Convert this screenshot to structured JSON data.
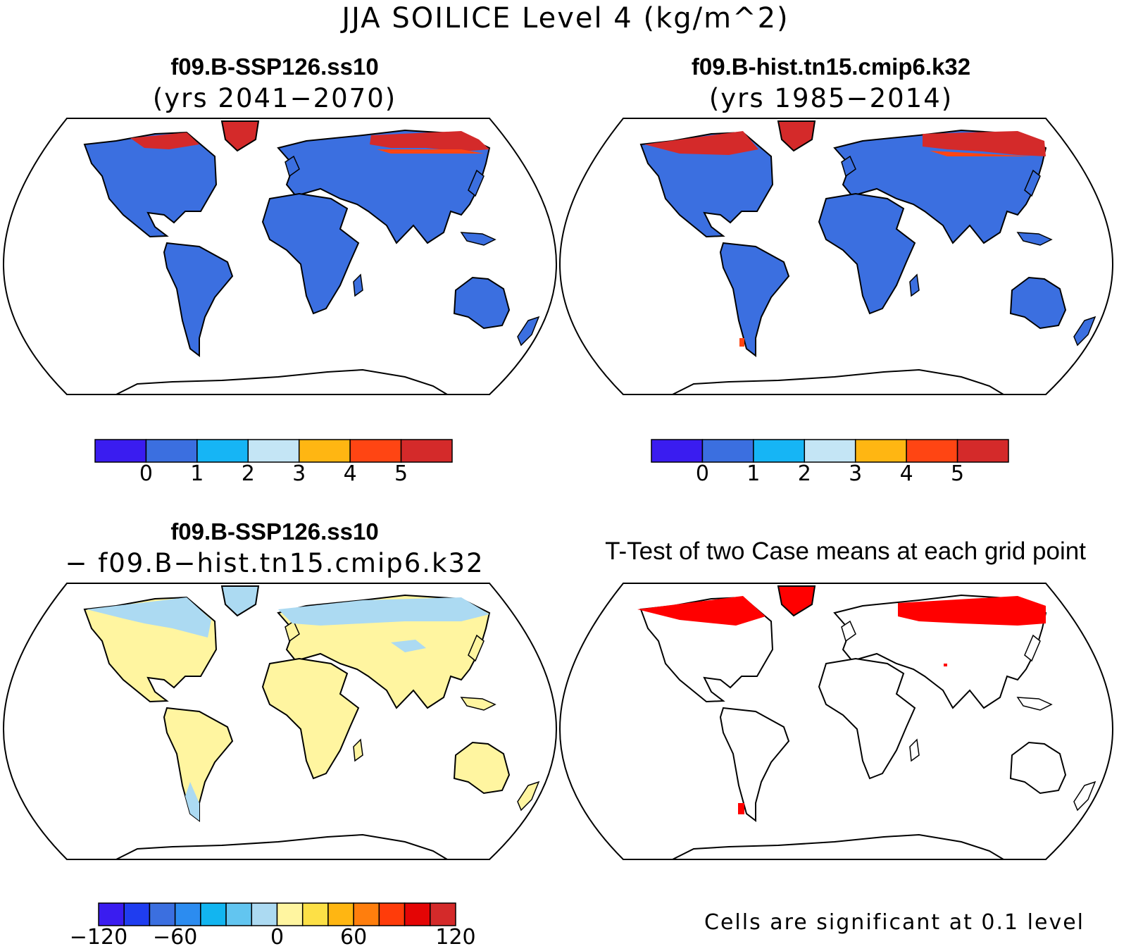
{
  "title": "JJA SOILICE Level 4 (kg/m^2)",
  "panels": {
    "top_left": {
      "title": "f09.B-SSP126.ss10",
      "subtitle": "(yrs 2041−2070)"
    },
    "top_right": {
      "title": "f09.B-hist.tn15.cmip6.k32",
      "subtitle": "(yrs 1985−2014)"
    },
    "bottom_left": {
      "title": "f09.B-SSP126.ss10",
      "subtitle": "− f09.B−hist.tn15.cmip6.k32"
    },
    "bottom_right": {
      "title": "T-Test of two Case means at each grid point",
      "note": "Cells are significant at 0.1 level"
    }
  },
  "colors": {
    "land_blue": "#3b6fe0",
    "arctic_red": "#d42a2a",
    "arctic_orange": "#ff4513",
    "light_blue_diff": "#acdaf2",
    "yellow_diff": "#fff5a0",
    "ttest_red": "#ff0000"
  },
  "chart_data": [
    {
      "type": "heatmap",
      "panel": "top_left",
      "colorbar": {
        "colors": [
          "#3a1cf0",
          "#3b6fe0",
          "#16b5f5",
          "#c4e5f5",
          "#ffb612",
          "#ff4513",
          "#d42a2a"
        ],
        "tick_labels": [
          "0",
          "1",
          "2",
          "3",
          "4",
          "5"
        ]
      }
    },
    {
      "type": "heatmap",
      "panel": "top_right",
      "colorbar": {
        "colors": [
          "#3a1cf0",
          "#3b6fe0",
          "#16b5f5",
          "#c4e5f5",
          "#ffb612",
          "#ff4513",
          "#d42a2a"
        ],
        "tick_labels": [
          "0",
          "1",
          "2",
          "3",
          "4",
          "5"
        ]
      }
    },
    {
      "type": "heatmap",
      "panel": "bottom_left",
      "colorbar": {
        "colors": [
          "#3a1cf0",
          "#1f3df0",
          "#3b6fe0",
          "#2c8cf0",
          "#12b5f0",
          "#62c5f0",
          "#acdaf2",
          "#fff5a0",
          "#fde046",
          "#ffb612",
          "#ff7e0d",
          "#ff3c0a",
          "#e40505",
          "#d42a2a"
        ],
        "tick_labels": [
          "−120",
          "−60",
          "0",
          "60",
          "120"
        ]
      }
    }
  ]
}
